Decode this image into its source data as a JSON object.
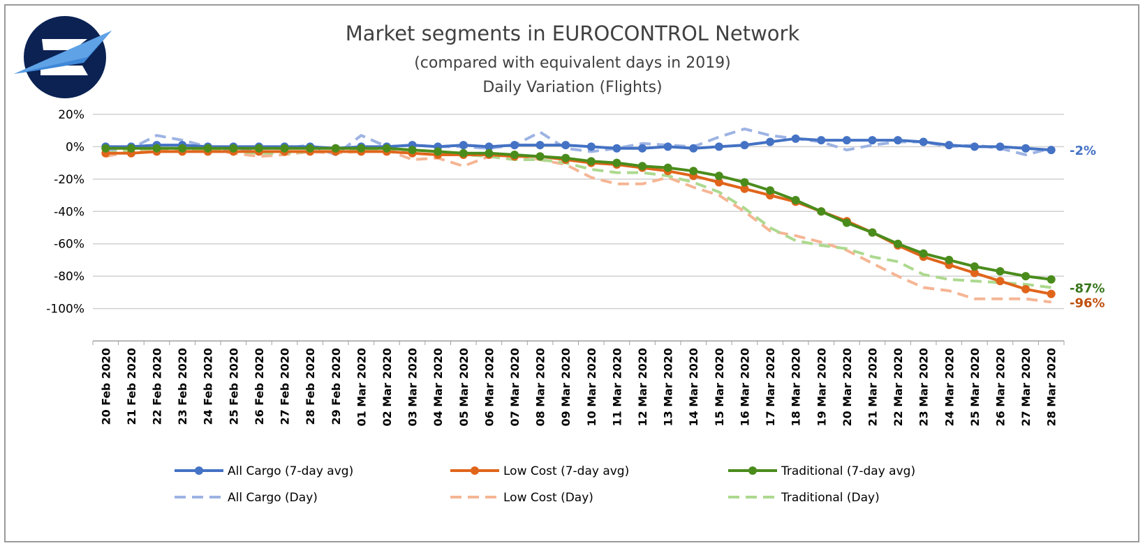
{
  "chart_data": {
    "type": "line",
    "title": "Market segments in EUROCONTROL Network",
    "subtitle": "(compared with equivalent days in 2019)",
    "subtitle2": "Daily Variation (Flights)",
    "ylim": [
      -120,
      20
    ],
    "yticks": [
      20,
      0,
      -20,
      -40,
      -60,
      -80,
      -100
    ],
    "ytick_labels": [
      "20%",
      "0%",
      "-20%",
      "-40%",
      "-60%",
      "-80%",
      "-100%"
    ],
    "grid": true,
    "legend_position": "bottom",
    "categories": [
      "20 Feb 2020",
      "21 Feb 2020",
      "22 Feb 2020",
      "23 Feb 2020",
      "24 Feb 2020",
      "25 Feb 2020",
      "26 Feb 2020",
      "27 Feb 2020",
      "28 Feb 2020",
      "29 Feb 2020",
      "01 Mar 2020",
      "02 Mar 2020",
      "03 Mar 2020",
      "04 Mar 2020",
      "05 Mar 2020",
      "06 Mar 2020",
      "07 Mar 2020",
      "08 Mar 2020",
      "09 Mar 2020",
      "10 Mar 2020",
      "11 Mar 2020",
      "12 Mar 2020",
      "13 Mar 2020",
      "14 Mar 2020",
      "15 Mar 2020",
      "16 Mar 2020",
      "17 Mar 2020",
      "18 Mar 2020",
      "19 Mar 2020",
      "20 Mar 2020",
      "21 Mar 2020",
      "22 Mar 2020",
      "23 Mar 2020",
      "24 Mar 2020",
      "25 Mar 2020",
      "26 Mar 2020",
      "27 Mar 2020",
      "28 Mar 2020"
    ],
    "series": [
      {
        "name": "All Cargo (Day)",
        "style": "dashed",
        "color": "#9db3e3",
        "values": [
          -2,
          -1,
          7,
          4,
          0,
          -2,
          -1,
          -1,
          1,
          -5,
          7,
          0,
          1,
          0,
          0,
          -1,
          1,
          9,
          -1,
          -3,
          -1,
          2,
          1,
          0,
          6,
          11,
          7,
          5,
          3,
          -2,
          1,
          3,
          3,
          0,
          1,
          -1,
          -5,
          -1
        ]
      },
      {
        "name": "Low Cost (Day)",
        "style": "dashed",
        "color": "#f5b594",
        "values": [
          -6,
          -3,
          -1,
          -3,
          -2,
          -4,
          -6,
          -5,
          -3,
          -4,
          -3,
          -2,
          -8,
          -7,
          -12,
          -6,
          -5,
          -8,
          -11,
          -19,
          -23,
          -23,
          -19,
          -25,
          -30,
          -40,
          -52,
          -55,
          -59,
          -64,
          -72,
          -80,
          -87,
          -89,
          -94,
          -94,
          -94,
          -96
        ]
      },
      {
        "name": "Traditional (Day)",
        "style": "dashed",
        "color": "#add98f",
        "values": [
          -4,
          -2,
          -1,
          -1,
          -2,
          -3,
          -4,
          -4,
          -3,
          -3,
          -2,
          -2,
          -4,
          -5,
          -5,
          -6,
          -8,
          -8,
          -10,
          -14,
          -16,
          -16,
          -18,
          -22,
          -28,
          -38,
          -50,
          -58,
          -61,
          -63,
          -68,
          -71,
          -79,
          -82,
          -83,
          -84,
          -85,
          -87
        ]
      },
      {
        "name": "All Cargo (7-day avg)",
        "style": "solid",
        "color": "#4472c4",
        "values": [
          0,
          0,
          1,
          1,
          0,
          0,
          0,
          0,
          0,
          -1,
          0,
          0,
          1,
          0,
          1,
          0,
          1,
          1,
          1,
          0,
          -1,
          -1,
          0,
          -1,
          0,
          1,
          3,
          5,
          4,
          4,
          4,
          4,
          3,
          1,
          0,
          0,
          -1,
          -2
        ]
      },
      {
        "name": "Low Cost (7-day avg)",
        "style": "solid",
        "color": "#e0651b",
        "values": [
          -4,
          -4,
          -3,
          -3,
          -3,
          -3,
          -3,
          -3,
          -3,
          -3,
          -3,
          -3,
          -4,
          -5,
          -5,
          -5,
          -6,
          -6,
          -8,
          -10,
          -11,
          -13,
          -15,
          -18,
          -22,
          -26,
          -30,
          -34,
          -40,
          -46,
          -53,
          -61,
          -68,
          -73,
          -78,
          -83,
          -88,
          -91
        ]
      },
      {
        "name": "Traditional (7-day avg)",
        "style": "solid",
        "color": "#4a8c1c",
        "values": [
          -1,
          -1,
          -1,
          -1,
          -1,
          -1,
          -1,
          -1,
          -1,
          -1,
          -1,
          -1,
          -2,
          -3,
          -4,
          -4,
          -5,
          -6,
          -7,
          -9,
          -10,
          -12,
          -13,
          -15,
          -18,
          -22,
          -27,
          -33,
          -40,
          -47,
          -53,
          -60,
          -66,
          -70,
          -74,
          -77,
          -80,
          -82
        ]
      }
    ],
    "end_labels": [
      {
        "text": "-2%",
        "color": "#4472c4",
        "value": -2
      },
      {
        "text": "-87%",
        "color": "#38761d",
        "value": -87
      },
      {
        "text": "-96%",
        "color": "#c0500f",
        "value": -96
      }
    ],
    "legend": [
      {
        "label": "All Cargo (7-day avg)",
        "series": 3
      },
      {
        "label": "Low Cost (7-day avg)",
        "series": 4
      },
      {
        "label": "Traditional (7-day avg)",
        "series": 5
      },
      {
        "label": "All Cargo (Day)",
        "series": 0
      },
      {
        "label": "Low Cost (Day)",
        "series": 1
      },
      {
        "label": "Traditional (Day)",
        "series": 2
      }
    ]
  },
  "colors": {
    "logo_navy": "#0b2253",
    "logo_blue": "#3f88d8",
    "grid": "#d0d0d0",
    "axis": "#a0a0a0",
    "frame": "#9a9a9a"
  },
  "logo": {
    "name": "eurocontrol-logo-icon"
  }
}
